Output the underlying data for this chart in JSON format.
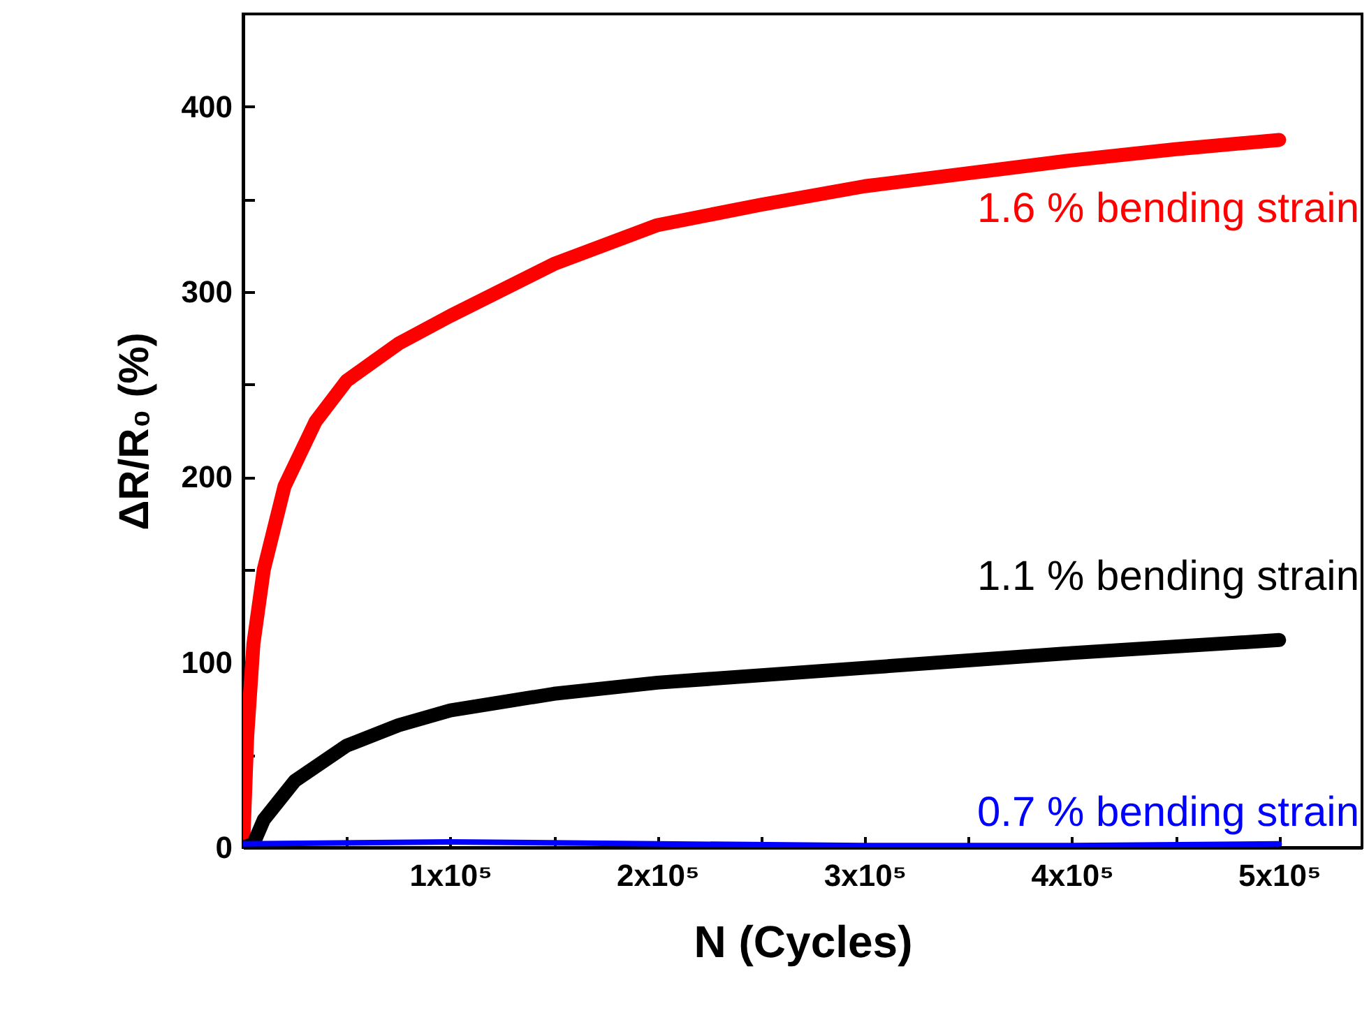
{
  "chart_data": {
    "type": "line",
    "xlabel": "N (Cycles)",
    "ylabel": "ΔR/R₀ (%)",
    "xlim": [
      0,
      540000
    ],
    "ylim": [
      0,
      450
    ],
    "xticks": [
      {
        "value": 50000,
        "label": null
      },
      {
        "value": 100000,
        "label": "1x10⁵"
      },
      {
        "value": 150000,
        "label": null
      },
      {
        "value": 200000,
        "label": "2x10⁵"
      },
      {
        "value": 250000,
        "label": null
      },
      {
        "value": 300000,
        "label": "3x10⁵"
      },
      {
        "value": 350000,
        "label": null
      },
      {
        "value": 400000,
        "label": "4x10⁵"
      },
      {
        "value": 450000,
        "label": null
      },
      {
        "value": 500000,
        "label": "5x10⁵"
      }
    ],
    "yticks": [
      0,
      {
        "value": 50,
        "label": null
      },
      100,
      {
        "value": 150,
        "label": null
      },
      200,
      {
        "value": 250,
        "label": null
      },
      300,
      {
        "value": 350,
        "label": null
      },
      400
    ],
    "grid": false,
    "marker": "none",
    "line_style": "solid",
    "series": [
      {
        "name": "1.6 % bending strain",
        "color": "#ff0000",
        "x": [
          0,
          2000,
          5000,
          10000,
          20000,
          35000,
          50000,
          75000,
          100000,
          150000,
          200000,
          250000,
          300000,
          350000,
          400000,
          450000,
          500000
        ],
        "values": [
          0,
          60,
          110,
          150,
          195,
          230,
          252,
          272,
          287,
          315,
          336,
          347,
          357,
          364,
          371,
          377,
          382
        ]
      },
      {
        "name": "1.1 % bending strain",
        "color": "#000000",
        "x": [
          0,
          5000,
          10000,
          25000,
          50000,
          75000,
          100000,
          150000,
          200000,
          300000,
          400000,
          500000
        ],
        "values": [
          0,
          2,
          15,
          36,
          55,
          66,
          74,
          83,
          89,
          97,
          105,
          112
        ]
      },
      {
        "name": "0.7 % bending strain",
        "color": "#0000ff",
        "x": [
          0,
          100000,
          200000,
          300000,
          400000,
          500000
        ],
        "values": [
          2,
          3,
          2,
          1,
          1,
          2
        ]
      }
    ]
  }
}
